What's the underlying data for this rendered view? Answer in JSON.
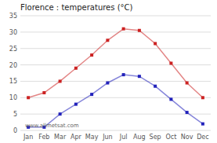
{
  "chart_data": {
    "type": "line",
    "title": "Florence : temperatures (°C)",
    "categories": [
      "Jan",
      "Feb",
      "Mar",
      "Apr",
      "May",
      "Jun",
      "Jul",
      "Aug",
      "Sep",
      "Oct",
      "Nov",
      "Dec"
    ],
    "series": [
      {
        "color": "#cc2222",
        "marker": "square",
        "values": [
          10,
          11.5,
          15,
          19,
          23,
          27.5,
          31,
          30.5,
          26.5,
          20.5,
          14.5,
          10
        ]
      },
      {
        "color": "#2222bb",
        "marker": "square",
        "values": [
          1,
          1,
          5,
          8,
          11,
          14.5,
          17,
          16.5,
          13.5,
          9.5,
          5.5,
          2
        ]
      }
    ],
    "ylim": [
      0,
      35
    ],
    "yticks": [
      0,
      5,
      10,
      15,
      20,
      25,
      30,
      35
    ],
    "grid": true,
    "annotations": [
      "www.allmetsat.com"
    ]
  }
}
